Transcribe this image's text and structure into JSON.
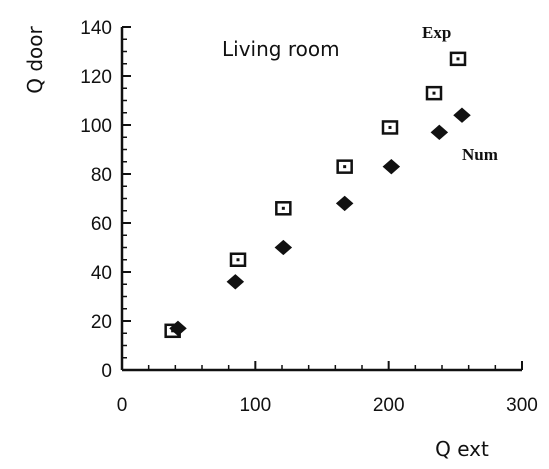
{
  "chart_data": {
    "type": "scatter",
    "title": "",
    "xlabel": "Q ext",
    "ylabel": "Q door",
    "xlim": [
      0,
      300
    ],
    "ylim": [
      0,
      140
    ],
    "xticks": [
      0,
      100,
      200,
      300
    ],
    "yticks": [
      0,
      20,
      40,
      60,
      80,
      100,
      120,
      140
    ],
    "grid": false,
    "annotations": [
      {
        "text": "Living room"
      }
    ],
    "series": [
      {
        "name": "Exp",
        "marker": "square-outline",
        "color": "#111111",
        "x": [
          38,
          87,
          121,
          167,
          201,
          234,
          252
        ],
        "y": [
          16,
          45,
          66,
          83,
          99,
          113,
          127
        ]
      },
      {
        "name": "Num",
        "marker": "diamond-filled",
        "color": "#111111",
        "x": [
          42,
          85,
          121,
          167,
          202,
          238,
          255
        ],
        "y": [
          17,
          36,
          50,
          68,
          83,
          97,
          104
        ]
      }
    ]
  }
}
